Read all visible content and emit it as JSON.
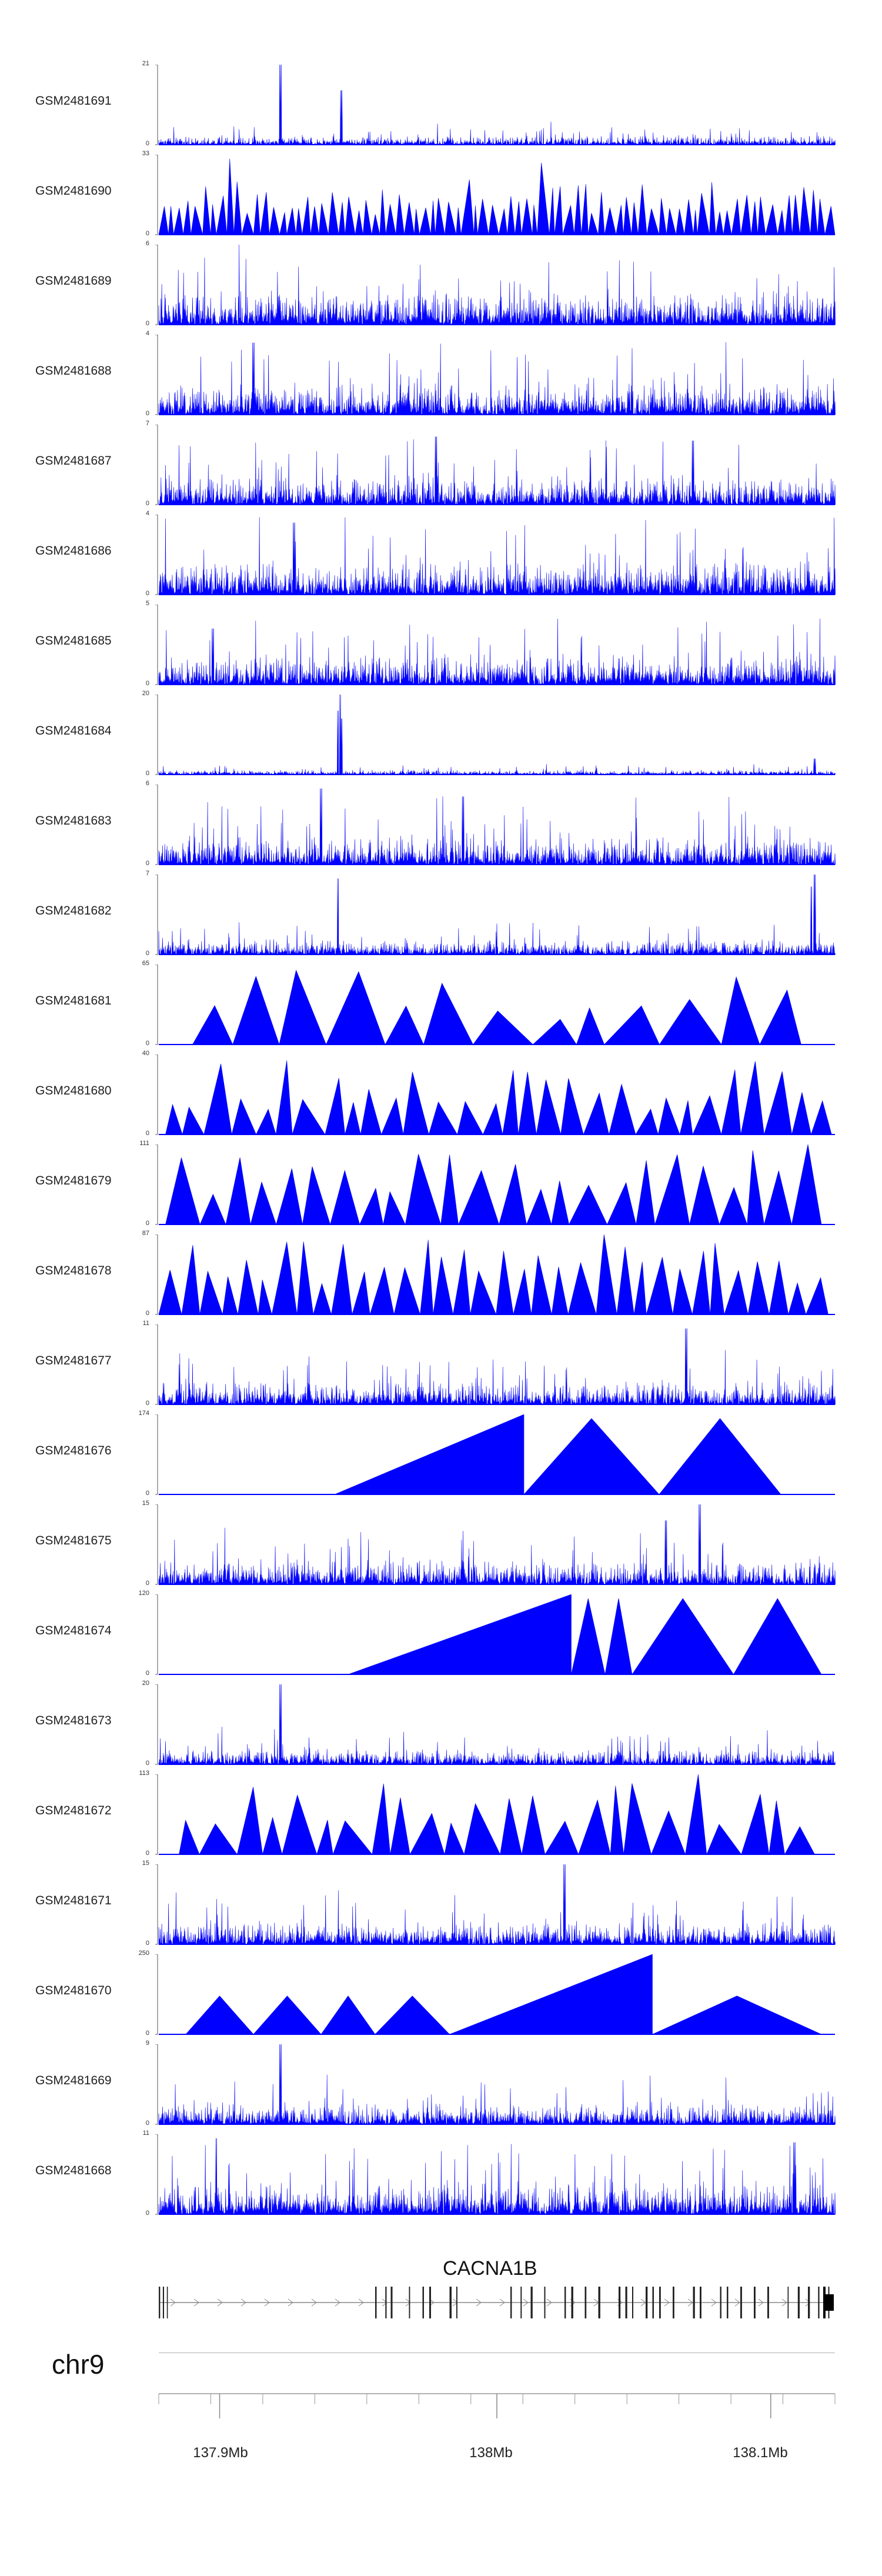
{
  "colors": {
    "signal": "#0000ff",
    "axis": "#555555",
    "gene": "#222222"
  },
  "tracks": [
    {
      "id": "GSM2481691",
      "ymax": "21",
      "ymin": "0",
      "style": "spiky",
      "seed": 11,
      "level": 0.12,
      "peaks": [
        [
          0.18,
          1.0
        ],
        [
          0.27,
          0.68
        ]
      ]
    },
    {
      "id": "GSM2481690",
      "ymax": "33",
      "ymin": "0",
      "style": "triangles",
      "seed": 12,
      "density": 80,
      "peaks": [
        [
          0.11,
          0.95
        ],
        [
          0.57,
          0.9
        ]
      ]
    },
    {
      "id": "GSM2481689",
      "ymax": "6",
      "ymin": "0",
      "style": "spiky",
      "seed": 13,
      "level": 0.45,
      "peaks": []
    },
    {
      "id": "GSM2481688",
      "ymax": "4",
      "ymin": "0",
      "style": "spiky",
      "seed": 14,
      "level": 0.42,
      "peaks": [
        [
          0.14,
          0.9
        ]
      ]
    },
    {
      "id": "GSM2481687",
      "ymax": "7",
      "ymin": "0",
      "style": "spiky",
      "seed": 15,
      "level": 0.38,
      "peaks": [
        [
          0.41,
          0.85
        ],
        [
          0.79,
          0.8
        ]
      ]
    },
    {
      "id": "GSM2481686",
      "ymax": "4",
      "ymin": "0",
      "style": "spiky",
      "seed": 16,
      "level": 0.45,
      "peaks": [
        [
          0.2,
          0.9
        ]
      ]
    },
    {
      "id": "GSM2481685",
      "ymax": "5",
      "ymin": "0",
      "style": "spiky",
      "seed": 17,
      "level": 0.4,
      "peaks": [
        [
          0.08,
          0.7
        ]
      ]
    },
    {
      "id": "GSM2481684",
      "ymax": "20",
      "ymin": "0",
      "style": "spiky",
      "seed": 18,
      "level": 0.06,
      "peaks": [
        [
          0.268,
          1.0
        ],
        [
          0.265,
          0.8
        ],
        [
          0.27,
          0.7
        ],
        [
          0.97,
          0.2
        ]
      ]
    },
    {
      "id": "GSM2481683",
      "ymax": "6",
      "ymin": "0",
      "style": "spiky",
      "seed": 19,
      "level": 0.38,
      "peaks": [
        [
          0.24,
          0.95
        ],
        [
          0.45,
          0.85
        ]
      ]
    },
    {
      "id": "GSM2481682",
      "ymax": "7",
      "ymin": "0",
      "style": "spiky",
      "seed": 20,
      "level": 0.2,
      "peaks": [
        [
          0.265,
          0.95
        ],
        [
          0.97,
          1.0
        ],
        [
          0.965,
          0.85
        ]
      ]
    },
    {
      "id": "GSM2481681",
      "ymax": "65",
      "ymin": "0",
      "style": "triangles",
      "seed": 21,
      "density": 13,
      "start": 0.05,
      "end": 0.95
    },
    {
      "id": "GSM2481680",
      "ymax": "40",
      "ymin": "0",
      "style": "triangles",
      "seed": 22,
      "density": 30,
      "start": 0.01,
      "end": 0.995
    },
    {
      "id": "GSM2481679",
      "ymax": "111",
      "ymin": "0",
      "style": "triangles",
      "seed": 23,
      "density": 24,
      "start": 0.01,
      "end": 0.98,
      "low": 0.35,
      "peaks": [
        [
          0.97,
          1.0
        ],
        [
          0.21,
          0.7
        ]
      ]
    },
    {
      "id": "GSM2481678",
      "ymax": "87",
      "ymin": "0",
      "style": "triangles",
      "seed": 24,
      "density": 34,
      "start": 0.0,
      "end": 0.99,
      "low": 0.35,
      "peaks": [
        [
          0.65,
          1.0
        ],
        [
          0.42,
          0.72
        ],
        [
          0.13,
          0.68
        ]
      ]
    },
    {
      "id": "GSM2481677",
      "ymax": "11",
      "ymin": "0",
      "style": "spiky",
      "seed": 25,
      "level": 0.3,
      "peaks": [
        [
          0.78,
          0.95
        ]
      ]
    },
    {
      "id": "GSM2481676",
      "ymax": "174",
      "ymin": "0",
      "style": "manual",
      "tri": [
        [
          0.26,
          0.54,
          1.0,
          0.0
        ],
        [
          0.54,
          0.74,
          0.95,
          0.0
        ],
        [
          0.74,
          0.92,
          0.95,
          0.0
        ]
      ]
    },
    {
      "id": "GSM2481675",
      "ymax": "15",
      "ymin": "0",
      "style": "spiky",
      "seed": 26,
      "level": 0.32,
      "peaks": [
        [
          0.8,
          1.0
        ],
        [
          0.75,
          0.8
        ]
      ]
    },
    {
      "id": "GSM2481674",
      "ymax": "120",
      "ymin": "0",
      "style": "manual",
      "tri": [
        [
          0.28,
          0.61,
          1.0,
          0.0
        ],
        [
          0.61,
          0.66,
          0.95,
          0.0
        ],
        [
          0.66,
          0.7,
          0.95,
          0.0
        ],
        [
          0.7,
          0.85,
          0.95,
          0.0
        ],
        [
          0.85,
          0.98,
          0.95,
          0.0
        ]
      ]
    },
    {
      "id": "GSM2481673",
      "ymax": "20",
      "ymin": "0",
      "style": "spiky",
      "seed": 27,
      "level": 0.2,
      "peaks": [
        [
          0.18,
          1.0
        ]
      ]
    },
    {
      "id": "GSM2481672",
      "ymax": "113",
      "ymin": "0",
      "style": "triangles",
      "seed": 28,
      "density": 24,
      "start": 0.03,
      "end": 0.97,
      "low": 0.3,
      "peaks": [
        [
          0.78,
          1.0
        ],
        [
          0.52,
          0.7
        ]
      ]
    },
    {
      "id": "GSM2481671",
      "ymax": "15",
      "ymin": "0",
      "style": "spiky",
      "seed": 29,
      "level": 0.3,
      "peaks": [
        [
          0.6,
          1.0
        ]
      ]
    },
    {
      "id": "GSM2481670",
      "ymax": "250",
      "ymin": "0",
      "style": "manual",
      "tri": [
        [
          0.04,
          0.14,
          0.48,
          0.0
        ],
        [
          0.14,
          0.24,
          0.48,
          0.0
        ],
        [
          0.24,
          0.32,
          0.48,
          0.0
        ],
        [
          0.32,
          0.43,
          0.48,
          0.0
        ],
        [
          0.43,
          0.73,
          1.0,
          0.0
        ],
        [
          0.73,
          0.98,
          0.48,
          0.0
        ]
      ]
    },
    {
      "id": "GSM2481669",
      "ymax": "9",
      "ymin": "0",
      "style": "spiky",
      "seed": 30,
      "level": 0.28,
      "peaks": [
        [
          0.18,
          1.0
        ]
      ]
    },
    {
      "id": "GSM2481668",
      "ymax": "11",
      "ymin": "0",
      "style": "spiky",
      "seed": 31,
      "level": 0.42,
      "peaks": [
        [
          0.085,
          0.95
        ],
        [
          0.94,
          0.9
        ]
      ]
    }
  ],
  "gene": {
    "name": "CACNA1B",
    "start": 0.0,
    "end": 1.0
  },
  "chromosome": "chr9",
  "axis": {
    "labels": [
      "137.9Mb",
      "138Mb",
      "138.1Mb"
    ],
    "label_fractions": [
      0.09,
      0.5,
      0.905
    ],
    "minor_tick_count": 14
  }
}
